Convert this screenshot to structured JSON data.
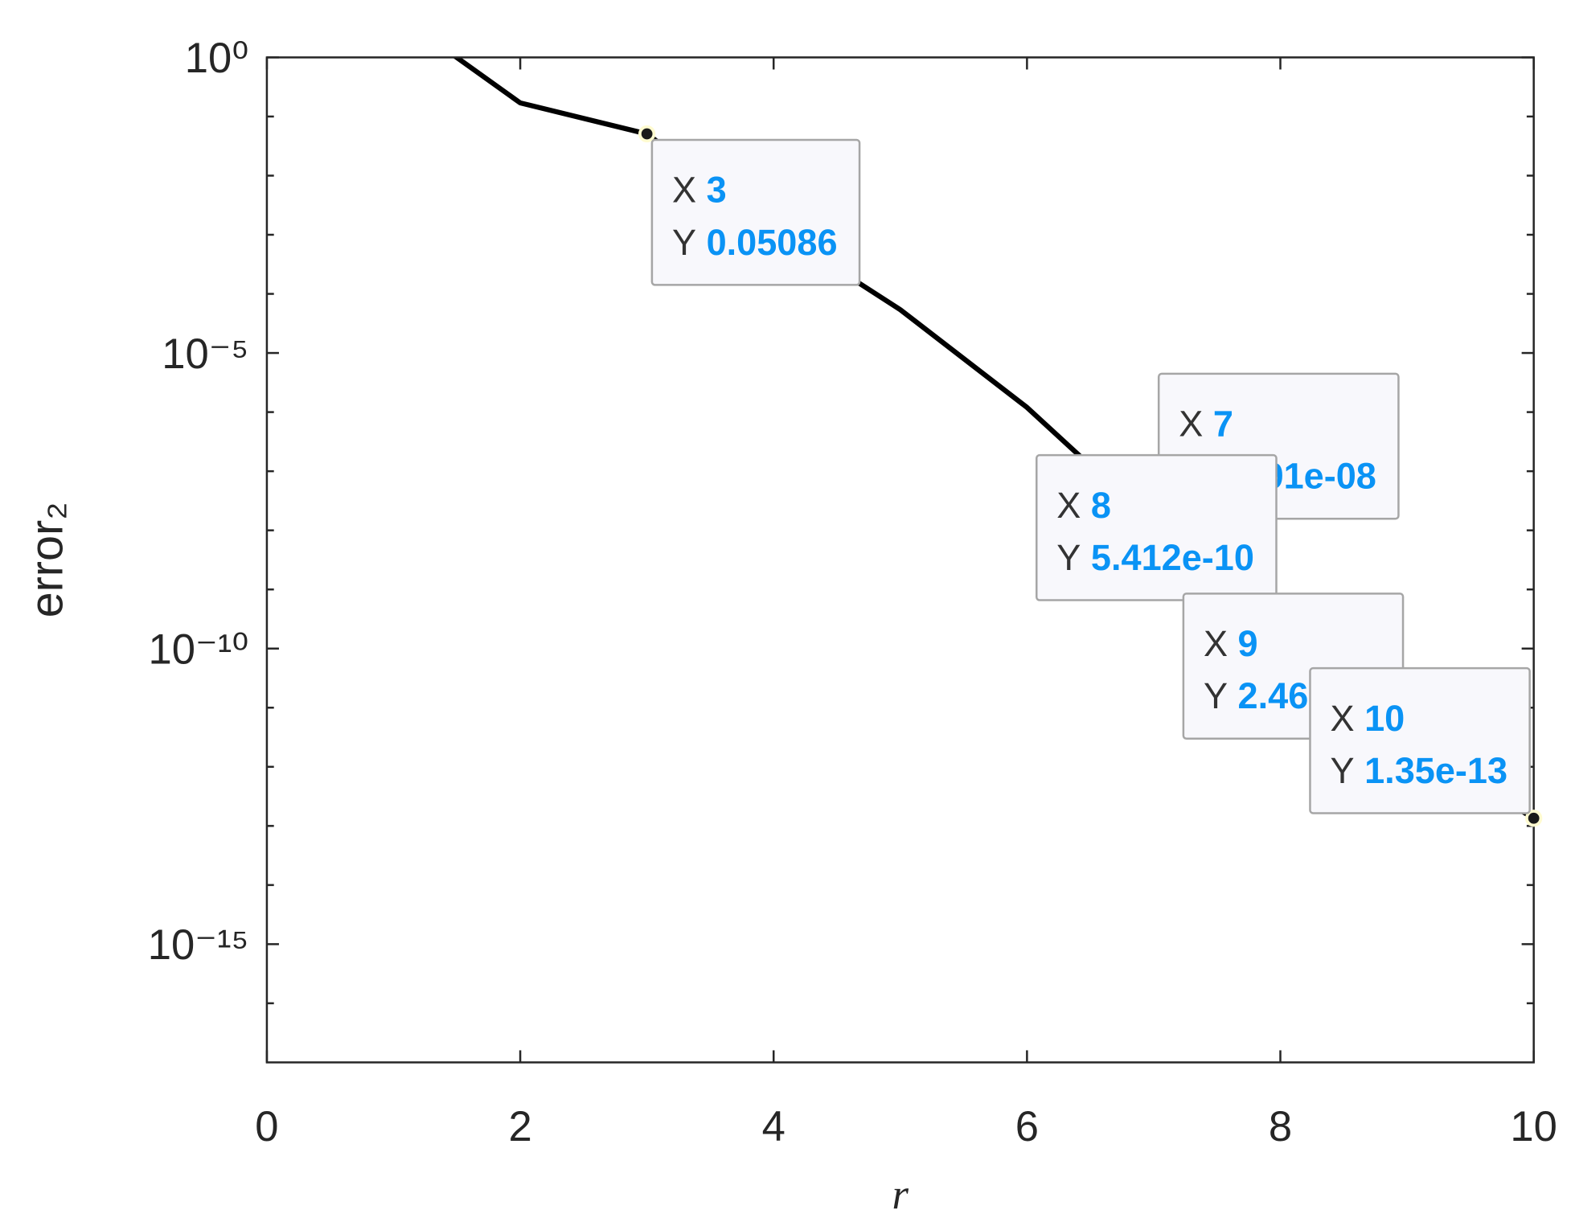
{
  "chart_data": {
    "type": "line",
    "x_label": "r",
    "y_label": "error₂",
    "x": [
      1,
      2,
      3,
      4,
      5,
      6,
      7,
      8,
      9,
      10
    ],
    "values": [
      5.8,
      0.17,
      0.05086,
      0.0013,
      5.4e-05,
      1.2e-06,
      1.291e-08,
      5.412e-10,
      2.46e-12,
      1.35e-13
    ],
    "color": "#000000",
    "xlim": [
      0,
      10
    ],
    "xticks": [
      0,
      2,
      4,
      6,
      8,
      10
    ],
    "ylim": [
      1e-17,
      1
    ],
    "log_y": true,
    "yticks": [
      {
        "value": 1,
        "label": "10⁰"
      },
      {
        "value": 1e-05,
        "label": "10⁻⁵"
      },
      {
        "value": 1e-10,
        "label": "10⁻¹⁰"
      },
      {
        "value": 1e-15,
        "label": "10⁻¹⁵"
      }
    ],
    "minor_yticks": [
      0.1,
      0.01,
      0.001,
      0.0001,
      1e-06,
      1e-07,
      1e-08,
      1e-09,
      1e-11,
      1e-12,
      1e-13,
      1e-14,
      1e-16
    ],
    "datatip_x_name": "X",
    "datatip_y_name": "Y",
    "datatips": [
      {
        "x": 3,
        "y": 0.05086,
        "y_label": "0.05086"
      },
      {
        "x": 7,
        "y": 1.291e-08,
        "y_label": "1.291e-08"
      },
      {
        "x": 8,
        "y": 5.412e-10,
        "y_label": "5.412e-10"
      },
      {
        "x": 9,
        "y": 2.46e-12,
        "y_label": "2.46e-12"
      },
      {
        "x": 10,
        "y": 1.35e-13,
        "y_label": "1.35e-13"
      }
    ]
  }
}
